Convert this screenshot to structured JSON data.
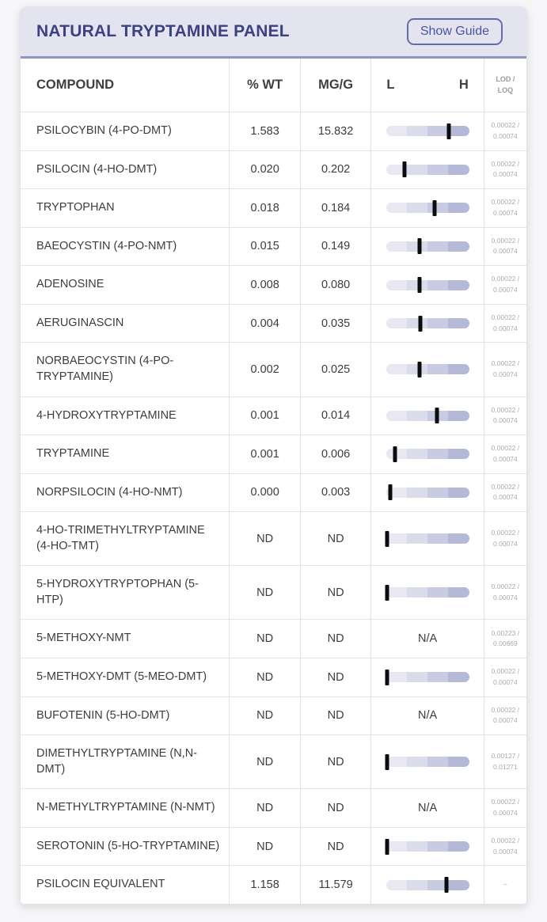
{
  "header": {
    "title": "NATURAL TRYPTAMINE PANEL",
    "button_label": "Show Guide"
  },
  "table": {
    "columns": {
      "compound": "COMPOUND",
      "pct_wt": "% WT",
      "mg_g": "MG/G",
      "range_low": "L",
      "range_high": "H",
      "lod_loq": "LOD / LOQ"
    },
    "na_label": "N/A",
    "rows": [
      {
        "compound": "PSILOCYBIN (4-PO-DMT)",
        "pct_wt": "1.583",
        "mg_g": "15.832",
        "marker": 0.76,
        "lod_loq": "0.00022 / 0.00074"
      },
      {
        "compound": "PSILOCIN (4-HO-DMT)",
        "pct_wt": "0.020",
        "mg_g": "0.202",
        "marker": 0.22,
        "lod_loq": "0.00022 / 0.00074"
      },
      {
        "compound": "TRYPTOPHAN",
        "pct_wt": "0.018",
        "mg_g": "0.184",
        "marker": 0.59,
        "lod_loq": "0.00022 / 0.00074"
      },
      {
        "compound": "BAEOCYSTIN (4-PO-NMT)",
        "pct_wt": "0.015",
        "mg_g": "0.149",
        "marker": 0.4,
        "lod_loq": "0.00022 / 0.00074"
      },
      {
        "compound": "ADENOSINE",
        "pct_wt": "0.008",
        "mg_g": "0.080",
        "marker": 0.4,
        "lod_loq": "0.00022 / 0.00074"
      },
      {
        "compound": "AERUGINASCIN",
        "pct_wt": "0.004",
        "mg_g": "0.035",
        "marker": 0.41,
        "lod_loq": "0.00022 / 0.00074"
      },
      {
        "compound": "NORBAEOCYSTIN (4-PO-TRYPTAMINE)",
        "pct_wt": "0.002",
        "mg_g": "0.025",
        "marker": 0.4,
        "lod_loq": "0.00022 / 0.00074"
      },
      {
        "compound": "4-HYDROXYTRYPTAMINE",
        "pct_wt": "0.001",
        "mg_g": "0.014",
        "marker": 0.61,
        "lod_loq": "0.00022 / 0.00074"
      },
      {
        "compound": "TRYPTAMINE",
        "pct_wt": "0.001",
        "mg_g": "0.006",
        "marker": 0.11,
        "lod_loq": "0.00022 / 0.00074"
      },
      {
        "compound": "NORPSILOCIN (4-HO-NMT)",
        "pct_wt": "0.000",
        "mg_g": "0.003",
        "marker": 0.05,
        "lod_loq": "0.00022 / 0.00074"
      },
      {
        "compound": "4-HO-TRIMETHYLTRYPTAMINE (4-HO-TMT)",
        "pct_wt": "ND",
        "mg_g": "ND",
        "marker": 0.01,
        "lod_loq": "0.00022 / 0.00074"
      },
      {
        "compound": "5-HYDROXYTRYPTOPHAN (5-HTP)",
        "pct_wt": "ND",
        "mg_g": "ND",
        "marker": 0.01,
        "lod_loq": "0.00022 / 0.00074"
      },
      {
        "compound": "5-METHOXY-NMT",
        "pct_wt": "ND",
        "mg_g": "ND",
        "marker": null,
        "lod_loq": "0.00223 / 0.00669"
      },
      {
        "compound": "5-METHOXY-DMT (5-MEO-DMT)",
        "pct_wt": "ND",
        "mg_g": "ND",
        "marker": 0.01,
        "lod_loq": "0.00022 / 0.00074"
      },
      {
        "compound": "BUFOTENIN (5-HO-DMT)",
        "pct_wt": "ND",
        "mg_g": "ND",
        "marker": null,
        "lod_loq": "0.00022 / 0.00074"
      },
      {
        "compound": "DIMETHYLTRYPTAMINE (N,N-DMT)",
        "pct_wt": "ND",
        "mg_g": "ND",
        "marker": 0.01,
        "lod_loq": "0.00127 / 0.01271"
      },
      {
        "compound": "N-METHYLTRYPTAMINE (N-NMT)",
        "pct_wt": "ND",
        "mg_g": "ND",
        "marker": null,
        "lod_loq": "0.00022 / 0.00074"
      },
      {
        "compound": "SEROTONIN (5-HO-TRYPTAMINE)",
        "pct_wt": "ND",
        "mg_g": "ND",
        "marker": 0.01,
        "lod_loq": "0.00022 / 0.00074"
      },
      {
        "compound": "PSILOCIN EQUIVALENT",
        "pct_wt": "1.158",
        "mg_g": "11.579",
        "marker": 0.73,
        "lod_loq": "–"
      }
    ]
  },
  "colors": {
    "accent": "#3b4181",
    "header_bg": "#e4e4f0",
    "header_rule": "#9196be",
    "bar_segments": [
      "#e7e8f1",
      "#dadcea",
      "#c8cbe1",
      "#b4b9d7"
    ],
    "marker": "#0c0c0e"
  }
}
